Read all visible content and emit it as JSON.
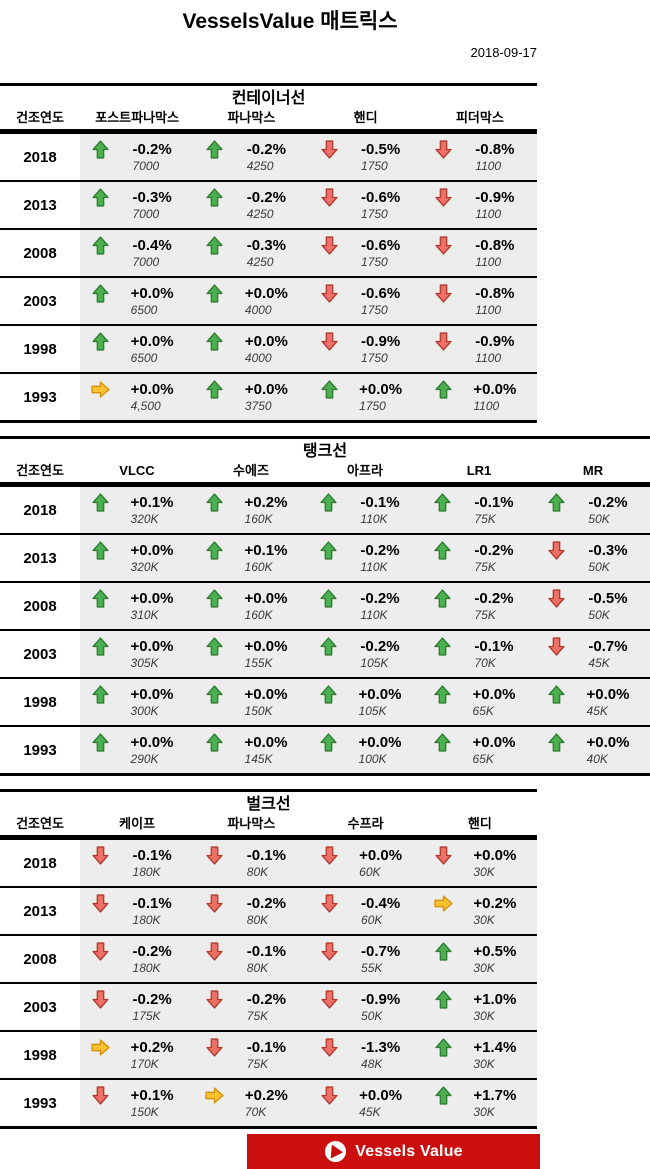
{
  "header": {
    "title": "VesselsValue 매트릭스",
    "date": "2018-09-17"
  },
  "chart_data": [
    {
      "type": "table",
      "title": "컨테이너선",
      "year_header": "건조연도",
      "columns": [
        "포스트파나막스",
        "파나막스",
        "핸디",
        "피더막스"
      ],
      "full_width": false,
      "rows": [
        {
          "year": "2018",
          "cells": [
            {
              "trend": "up",
              "change": "-0.2%",
              "value": "7000"
            },
            {
              "trend": "up",
              "change": "-0.2%",
              "value": "4250"
            },
            {
              "trend": "down",
              "change": "-0.5%",
              "value": "1750"
            },
            {
              "trend": "down",
              "change": "-0.8%",
              "value": "1100"
            }
          ]
        },
        {
          "year": "2013",
          "cells": [
            {
              "trend": "up",
              "change": "-0.3%",
              "value": "7000"
            },
            {
              "trend": "up",
              "change": "-0.2%",
              "value": "4250"
            },
            {
              "trend": "down",
              "change": "-0.6%",
              "value": "1750"
            },
            {
              "trend": "down",
              "change": "-0.9%",
              "value": "1100"
            }
          ]
        },
        {
          "year": "2008",
          "cells": [
            {
              "trend": "up",
              "change": "-0.4%",
              "value": "7000"
            },
            {
              "trend": "up",
              "change": "-0.3%",
              "value": "4250"
            },
            {
              "trend": "down",
              "change": "-0.6%",
              "value": "1750"
            },
            {
              "trend": "down",
              "change": "-0.8%",
              "value": "1100"
            }
          ]
        },
        {
          "year": "2003",
          "cells": [
            {
              "trend": "up",
              "change": "+0.0%",
              "value": "6500"
            },
            {
              "trend": "up",
              "change": "+0.0%",
              "value": "4000"
            },
            {
              "trend": "down",
              "change": "-0.6%",
              "value": "1750"
            },
            {
              "trend": "down",
              "change": "-0.8%",
              "value": "1100"
            }
          ]
        },
        {
          "year": "1998",
          "cells": [
            {
              "trend": "up",
              "change": "+0.0%",
              "value": "6500"
            },
            {
              "trend": "up",
              "change": "+0.0%",
              "value": "4000"
            },
            {
              "trend": "down",
              "change": "-0.9%",
              "value": "1750"
            },
            {
              "trend": "down",
              "change": "-0.9%",
              "value": "1100"
            }
          ]
        },
        {
          "year": "1993",
          "cells": [
            {
              "trend": "flat",
              "change": "+0.0%",
              "value": "4,500"
            },
            {
              "trend": "up",
              "change": "+0.0%",
              "value": "3750"
            },
            {
              "trend": "up",
              "change": "+0.0%",
              "value": "1750"
            },
            {
              "trend": "up",
              "change": "+0.0%",
              "value": "1100"
            }
          ]
        }
      ]
    },
    {
      "type": "table",
      "title": "탱크선",
      "year_header": "건조연도",
      "columns": [
        "VLCC",
        "수에즈",
        "아프라",
        "LR1",
        "MR"
      ],
      "full_width": true,
      "rows": [
        {
          "year": "2018",
          "cells": [
            {
              "trend": "up",
              "change": "+0.1%",
              "value": "320K"
            },
            {
              "trend": "up",
              "change": "+0.2%",
              "value": "160K"
            },
            {
              "trend": "up",
              "change": "-0.1%",
              "value": "110K"
            },
            {
              "trend": "up",
              "change": "-0.1%",
              "value": "75K"
            },
            {
              "trend": "up",
              "change": "-0.2%",
              "value": "50K"
            }
          ]
        },
        {
          "year": "2013",
          "cells": [
            {
              "trend": "up",
              "change": "+0.0%",
              "value": "320K"
            },
            {
              "trend": "up",
              "change": "+0.1%",
              "value": "160K"
            },
            {
              "trend": "up",
              "change": "-0.2%",
              "value": "110K"
            },
            {
              "trend": "up",
              "change": "-0.2%",
              "value": "75K"
            },
            {
              "trend": "down",
              "change": "-0.3%",
              "value": "50K"
            }
          ]
        },
        {
          "year": "2008",
          "cells": [
            {
              "trend": "up",
              "change": "+0.0%",
              "value": "310K"
            },
            {
              "trend": "up",
              "change": "+0.0%",
              "value": "160K"
            },
            {
              "trend": "up",
              "change": "-0.2%",
              "value": "110K"
            },
            {
              "trend": "up",
              "change": "-0.2%",
              "value": "75K"
            },
            {
              "trend": "down",
              "change": "-0.5%",
              "value": "50K"
            }
          ]
        },
        {
          "year": "2003",
          "cells": [
            {
              "trend": "up",
              "change": "+0.0%",
              "value": "305K"
            },
            {
              "trend": "up",
              "change": "+0.0%",
              "value": "155K"
            },
            {
              "trend": "up",
              "change": "-0.2%",
              "value": "105K"
            },
            {
              "trend": "up",
              "change": "-0.1%",
              "value": "70K"
            },
            {
              "trend": "down",
              "change": "-0.7%",
              "value": "45K"
            }
          ]
        },
        {
          "year": "1998",
          "cells": [
            {
              "trend": "up",
              "change": "+0.0%",
              "value": "300K"
            },
            {
              "trend": "up",
              "change": "+0.0%",
              "value": "150K"
            },
            {
              "trend": "up",
              "change": "+0.0%",
              "value": "105K"
            },
            {
              "trend": "up",
              "change": "+0.0%",
              "value": "65K"
            },
            {
              "trend": "up",
              "change": "+0.0%",
              "value": "45K"
            }
          ]
        },
        {
          "year": "1993",
          "cells": [
            {
              "trend": "up",
              "change": "+0.0%",
              "value": "290K"
            },
            {
              "trend": "up",
              "change": "+0.0%",
              "value": "145K"
            },
            {
              "trend": "up",
              "change": "+0.0%",
              "value": "100K"
            },
            {
              "trend": "up",
              "change": "+0.0%",
              "value": "65K"
            },
            {
              "trend": "up",
              "change": "+0.0%",
              "value": "40K"
            }
          ]
        }
      ]
    },
    {
      "type": "table",
      "title": "벌크선",
      "year_header": "건조연도",
      "columns": [
        "케이프",
        "파나막스",
        "수프라",
        "핸디"
      ],
      "full_width": false,
      "rows": [
        {
          "year": "2018",
          "cells": [
            {
              "trend": "down",
              "change": "-0.1%",
              "value": "180K"
            },
            {
              "trend": "down",
              "change": "-0.1%",
              "value": "80K"
            },
            {
              "trend": "down",
              "change": "+0.0%",
              "value": "60K"
            },
            {
              "trend": "down",
              "change": "+0.0%",
              "value": "30K"
            }
          ]
        },
        {
          "year": "2013",
          "cells": [
            {
              "trend": "down",
              "change": "-0.1%",
              "value": "180K"
            },
            {
              "trend": "down",
              "change": "-0.2%",
              "value": "80K"
            },
            {
              "trend": "down",
              "change": "-0.4%",
              "value": "60K"
            },
            {
              "trend": "flat",
              "change": "+0.2%",
              "value": "30K"
            }
          ]
        },
        {
          "year": "2008",
          "cells": [
            {
              "trend": "down",
              "change": "-0.2%",
              "value": "180K"
            },
            {
              "trend": "down",
              "change": "-0.1%",
              "value": "80K"
            },
            {
              "trend": "down",
              "change": "-0.7%",
              "value": "55K"
            },
            {
              "trend": "up",
              "change": "+0.5%",
              "value": "30K"
            }
          ]
        },
        {
          "year": "2003",
          "cells": [
            {
              "trend": "down",
              "change": "-0.2%",
              "value": "175K"
            },
            {
              "trend": "down",
              "change": "-0.2%",
              "value": "75K"
            },
            {
              "trend": "down",
              "change": "-0.9%",
              "value": "50K"
            },
            {
              "trend": "up",
              "change": "+1.0%",
              "value": "30K"
            }
          ]
        },
        {
          "year": "1998",
          "cells": [
            {
              "trend": "flat",
              "change": "+0.2%",
              "value": "170K"
            },
            {
              "trend": "down",
              "change": "-0.1%",
              "value": "75K"
            },
            {
              "trend": "down",
              "change": "-1.3%",
              "value": "48K"
            },
            {
              "trend": "up",
              "change": "+1.4%",
              "value": "30K"
            }
          ]
        },
        {
          "year": "1993",
          "cells": [
            {
              "trend": "down",
              "change": "+0.1%",
              "value": "150K"
            },
            {
              "trend": "flat",
              "change": "+0.2%",
              "value": "70K"
            },
            {
              "trend": "down",
              "change": "+0.0%",
              "value": "45K"
            },
            {
              "trend": "up",
              "change": "+1.7%",
              "value": "30K"
            }
          ]
        }
      ]
    }
  ],
  "footer": {
    "brand": "Vessels Value",
    "logo_icon": "vesselsvalue-play-icon"
  },
  "colors": {
    "up_green": "#4caf50",
    "up_border": "#2e7d32",
    "down_red": "#ee7168",
    "down_border": "#b03a30",
    "flat_yellow": "#fdc02e",
    "flat_border": "#d4920a",
    "cell_bg": "#ededed",
    "banner_red": "#cb0e0e"
  }
}
